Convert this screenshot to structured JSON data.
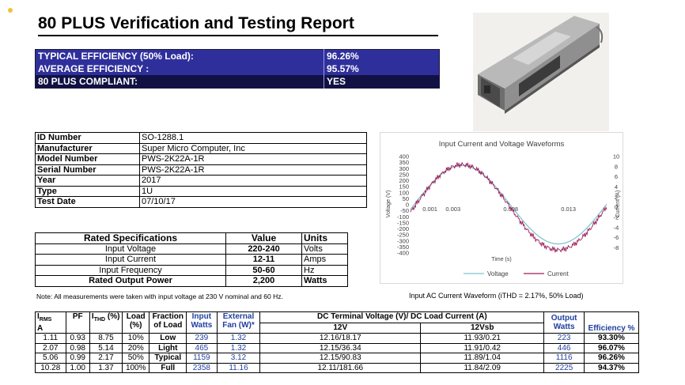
{
  "header": {
    "title": "80 PLUS Verification and Testing Report"
  },
  "efficiency": [
    {
      "label": "TYPICAL EFFICIENCY (50% Load):",
      "value": "96.26%"
    },
    {
      "label": "AVERAGE EFFICIENCY :",
      "value": "95.57%"
    },
    {
      "label": "80 PLUS COMPLIANT:",
      "value": "YES"
    }
  ],
  "photo": {
    "subject": "power-supply-unit"
  },
  "id_table": [
    {
      "key": "ID Number",
      "value": "SO-1288.1"
    },
    {
      "key": "Manufacturer",
      "value": "Super Micro Computer, Inc"
    },
    {
      "key": "Model Number",
      "value": "PWS-2K22A-1R"
    },
    {
      "key": "Serial Number",
      "value": "PWS-2K22A-1R"
    },
    {
      "key": "Year",
      "value": "2017"
    },
    {
      "key": "Type",
      "value": "1U"
    },
    {
      "key": "Test Date",
      "value": "07/10/17"
    }
  ],
  "rated": {
    "headers": {
      "spec": "Rated Specifications",
      "value": "Value",
      "units": "Units"
    },
    "rows": [
      {
        "spec": "Input Voltage",
        "value": "220-240",
        "units": "Volts"
      },
      {
        "spec": "Input Current",
        "value": "12-11",
        "units": "Amps"
      },
      {
        "spec": "Input Frequency",
        "value": "50-60",
        "units": "Hz"
      },
      {
        "spec": "Rated Output Power",
        "value": "2,200",
        "units": "Watts"
      }
    ]
  },
  "note": "Note: All measurements were taken with input voltage at 230 V nominal and 60 Hz.",
  "chart_data": {
    "type": "line",
    "title": "Input Current and Voltage Waveforms",
    "xlabel": "Time (s)",
    "ylabel": "Voltage (V)",
    "y2label": "Current (A)",
    "x_ticks": [
      "0.001",
      "0.003",
      "0.008",
      "0.013"
    ],
    "y_ticks": [
      "400",
      "350",
      "300",
      "250",
      "200",
      "150",
      "100",
      "50",
      "0",
      "-50",
      "-100",
      "-150",
      "-200",
      "-250",
      "-300",
      "-350",
      "-400"
    ],
    "y2_ticks": [
      "10",
      "8",
      "6",
      "4",
      "2",
      "0",
      "-2",
      "-4",
      "-6",
      "-8"
    ],
    "ylim": [
      -400,
      400
    ],
    "y2lim": [
      -9,
      10
    ],
    "xlim": [
      0,
      0.017
    ],
    "series": [
      {
        "name": "Voltage",
        "color": "#7fc4cf",
        "amplitude": 325
      },
      {
        "name": "Current",
        "color": "#9c1f5a",
        "amplitude": 8.4
      }
    ],
    "legend_position": "bottom",
    "grid": false
  },
  "wave_caption": "Input AC Current Waveform (iTHD = 2.17%, 50% Load)",
  "measurements": {
    "headers": {
      "irms": "IRMS A",
      "pf": "PF",
      "ithd": "ITHD (%)",
      "load": "Load (%)",
      "fraction": "Fraction of Load",
      "input": "Input Watts",
      "fan": "External Fan (W)*",
      "dc_group": "DC Terminal Voltage (V)/ DC Load Current (A)",
      "v12": "12V",
      "v12sb": "12Vsb",
      "output": "Output Watts",
      "efficiency": "Efficiency %"
    },
    "rows": [
      {
        "irms": "1.11",
        "pf": "0.93",
        "ithd": "8.75",
        "load": "10%",
        "fraction": "Low",
        "input": "239",
        "fan": "1.32",
        "v12": "12.16/18.17",
        "v12sb": "11.93/0.21",
        "output": "223",
        "eff": "93.30%"
      },
      {
        "irms": "2.07",
        "pf": "0.98",
        "ithd": "5.14",
        "load": "20%",
        "fraction": "Light",
        "input": "465",
        "fan": "1.32",
        "v12": "12.15/36.34",
        "v12sb": "11.91/0.42",
        "output": "446",
        "eff": "96.07%"
      },
      {
        "irms": "5.06",
        "pf": "0.99",
        "ithd": "2.17",
        "load": "50%",
        "fraction": "Typical",
        "input": "1159",
        "fan": "3.12",
        "v12": "12.15/90.83",
        "v12sb": "11.89/1.04",
        "output": "1116",
        "eff": "96.26%"
      },
      {
        "irms": "10.28",
        "pf": "1.00",
        "ithd": "1.37",
        "load": "100%",
        "fraction": "Full",
        "input": "2358",
        "fan": "11.16",
        "v12": "12.11/181.66",
        "v12sb": "11.84/2.09",
        "output": "2225",
        "eff": "94.37%"
      }
    ]
  }
}
